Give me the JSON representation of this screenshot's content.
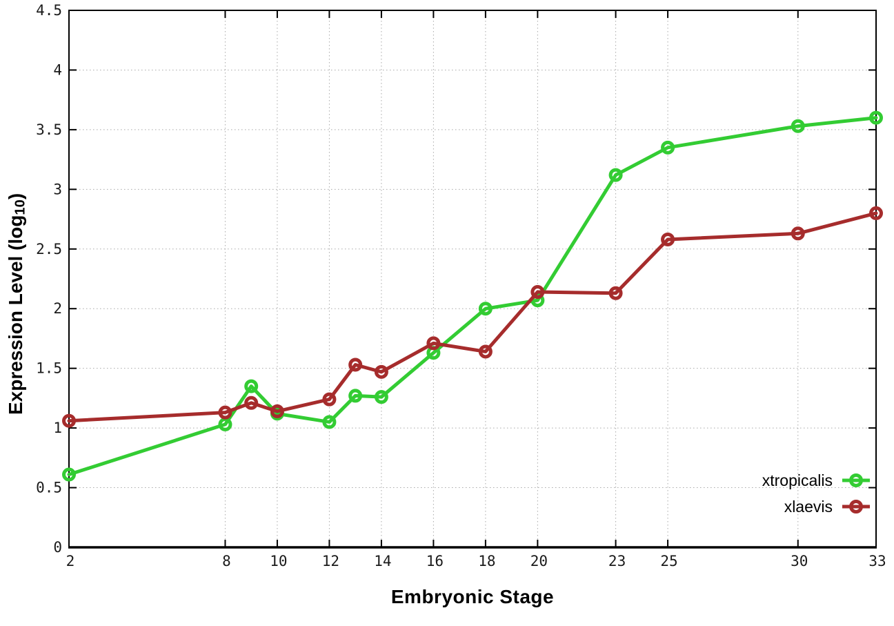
{
  "chart_data": {
    "type": "line",
    "title": "",
    "xlabel": "Embryonic Stage",
    "ylabel": {
      "prefix": "Expression Level (log",
      "subscript": "10",
      "suffix": ")"
    },
    "xlim": [
      2,
      33
    ],
    "ylim": [
      0,
      4.5
    ],
    "xticks": [
      2,
      8,
      10,
      12,
      14,
      16,
      18,
      20,
      23,
      25,
      30,
      33
    ],
    "xtick_labels": [
      "2",
      "8",
      "10",
      "12",
      "14",
      "16",
      "18",
      "20",
      "23",
      "25",
      "30",
      "33"
    ],
    "yticks": [
      0,
      0.5,
      1,
      1.5,
      2,
      2.5,
      3,
      3.5,
      4,
      4.5
    ],
    "ytick_labels": [
      "0",
      "0.5",
      "1",
      "1.5",
      "2",
      "2.5",
      "3",
      "3.5",
      "4",
      "4.5"
    ],
    "grid": true,
    "legend_position": "inside-bottom-right",
    "x": [
      2,
      8,
      9,
      10,
      12,
      13,
      14,
      16,
      18,
      20,
      23,
      25,
      30,
      33
    ],
    "series": [
      {
        "name": "xtropicalis",
        "color": "#33cc33",
        "marker": "open-circle",
        "values": [
          0.61,
          1.03,
          1.35,
          1.12,
          1.05,
          1.27,
          1.26,
          1.63,
          2.0,
          2.07,
          3.12,
          3.35,
          3.53,
          3.6
        ]
      },
      {
        "name": "xlaevis",
        "color": "#a62c2c",
        "marker": "open-circle",
        "values": [
          1.06,
          1.13,
          1.21,
          1.14,
          1.24,
          1.53,
          1.47,
          1.71,
          1.64,
          2.14,
          2.13,
          2.58,
          2.63,
          2.8
        ]
      }
    ],
    "style": {
      "axis_color": "#000000",
      "tick_label_color": "#1a1a1a",
      "grid_color": "#a8a8a8",
      "background": "#ffffff"
    }
  }
}
